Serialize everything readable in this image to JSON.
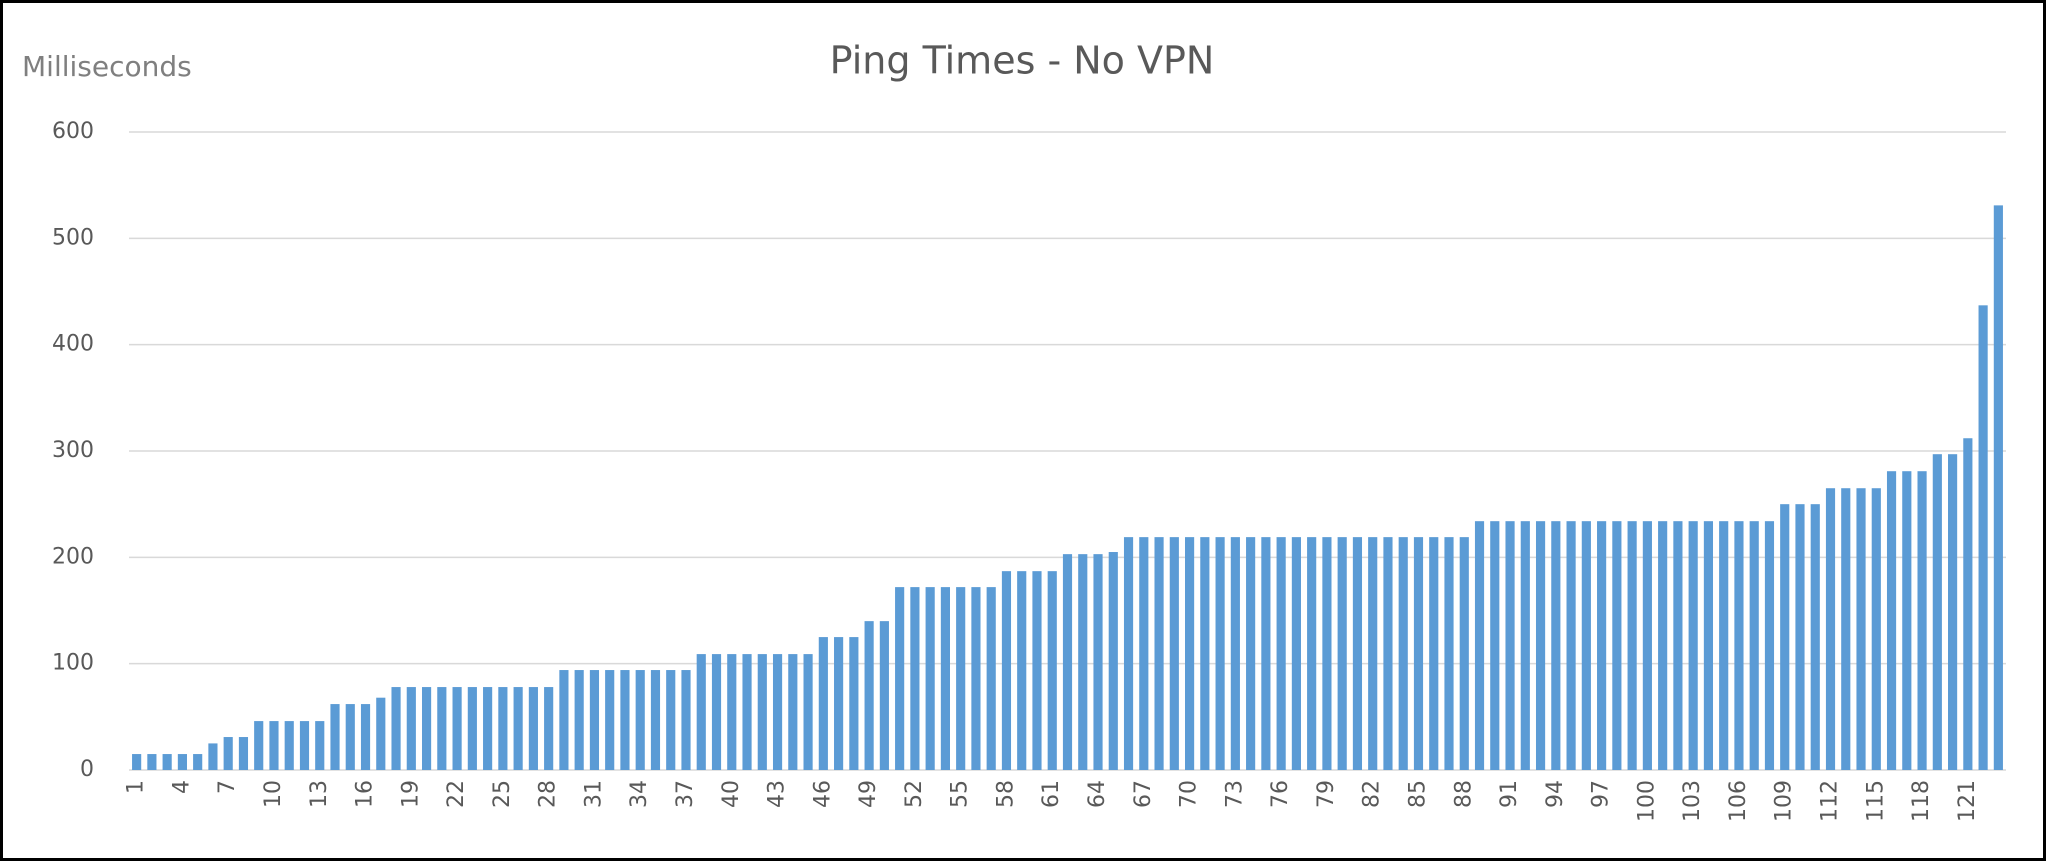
{
  "chart_data": {
    "type": "bar",
    "title": "Ping Times - No VPN",
    "y_label": "Milliseconds",
    "categories": [
      "1",
      null,
      null,
      "4",
      null,
      null,
      "7",
      null,
      null,
      "10",
      null,
      null,
      "13",
      null,
      null,
      "16",
      null,
      null,
      "19",
      null,
      null,
      "22",
      null,
      null,
      "25",
      null,
      null,
      "28",
      null,
      null,
      "31",
      null,
      null,
      "34",
      null,
      null,
      "37",
      null,
      null,
      "40",
      null,
      null,
      "43",
      null,
      null,
      "46",
      null,
      null,
      "49",
      null,
      null,
      "52",
      null,
      null,
      "55",
      null,
      null,
      "58",
      null,
      null,
      "61",
      null,
      null,
      "64",
      null,
      null,
      "67",
      null,
      null,
      "70",
      null,
      null,
      "73",
      null,
      null,
      "76",
      null,
      null,
      "79",
      null,
      null,
      "82",
      null,
      null,
      "85",
      null,
      null,
      "88",
      null,
      null,
      "91",
      null,
      null,
      "94",
      null,
      null,
      "97",
      null,
      null,
      "100",
      null,
      null,
      "103",
      null,
      null,
      "106",
      null,
      null,
      "109",
      null,
      null,
      "112",
      null,
      null,
      "115",
      null,
      null,
      "118",
      null,
      null,
      "121",
      null,
      null
    ],
    "values": [
      15,
      15,
      15,
      15,
      15,
      25,
      31,
      31,
      46,
      46,
      46,
      46,
      46,
      62,
      62,
      62,
      68,
      78,
      78,
      78,
      78,
      78,
      78,
      78,
      78,
      78,
      78,
      78,
      94,
      94,
      94,
      94,
      94,
      94,
      94,
      94,
      94,
      109,
      109,
      109,
      109,
      109,
      109,
      109,
      109,
      125,
      125,
      125,
      140,
      140,
      172,
      172,
      172,
      172,
      172,
      172,
      172,
      187,
      187,
      187,
      187,
      203,
      203,
      203,
      205,
      219,
      219,
      219,
      219,
      219,
      219,
      219,
      219,
      219,
      219,
      219,
      219,
      219,
      219,
      219,
      219,
      219,
      219,
      219,
      219,
      219,
      219,
      219,
      234,
      234,
      234,
      234,
      234,
      234,
      234,
      234,
      234,
      234,
      234,
      234,
      234,
      234,
      234,
      234,
      234,
      234,
      234,
      234,
      250,
      250,
      250,
      265,
      265,
      265,
      265,
      281,
      281,
      281,
      297,
      297,
      312,
      437,
      531
    ],
    "color": "#5b9bd5",
    "ylim": [
      0,
      600
    ],
    "yticks": [
      0,
      100,
      200,
      300,
      400,
      500,
      600
    ],
    "grid": true
  }
}
